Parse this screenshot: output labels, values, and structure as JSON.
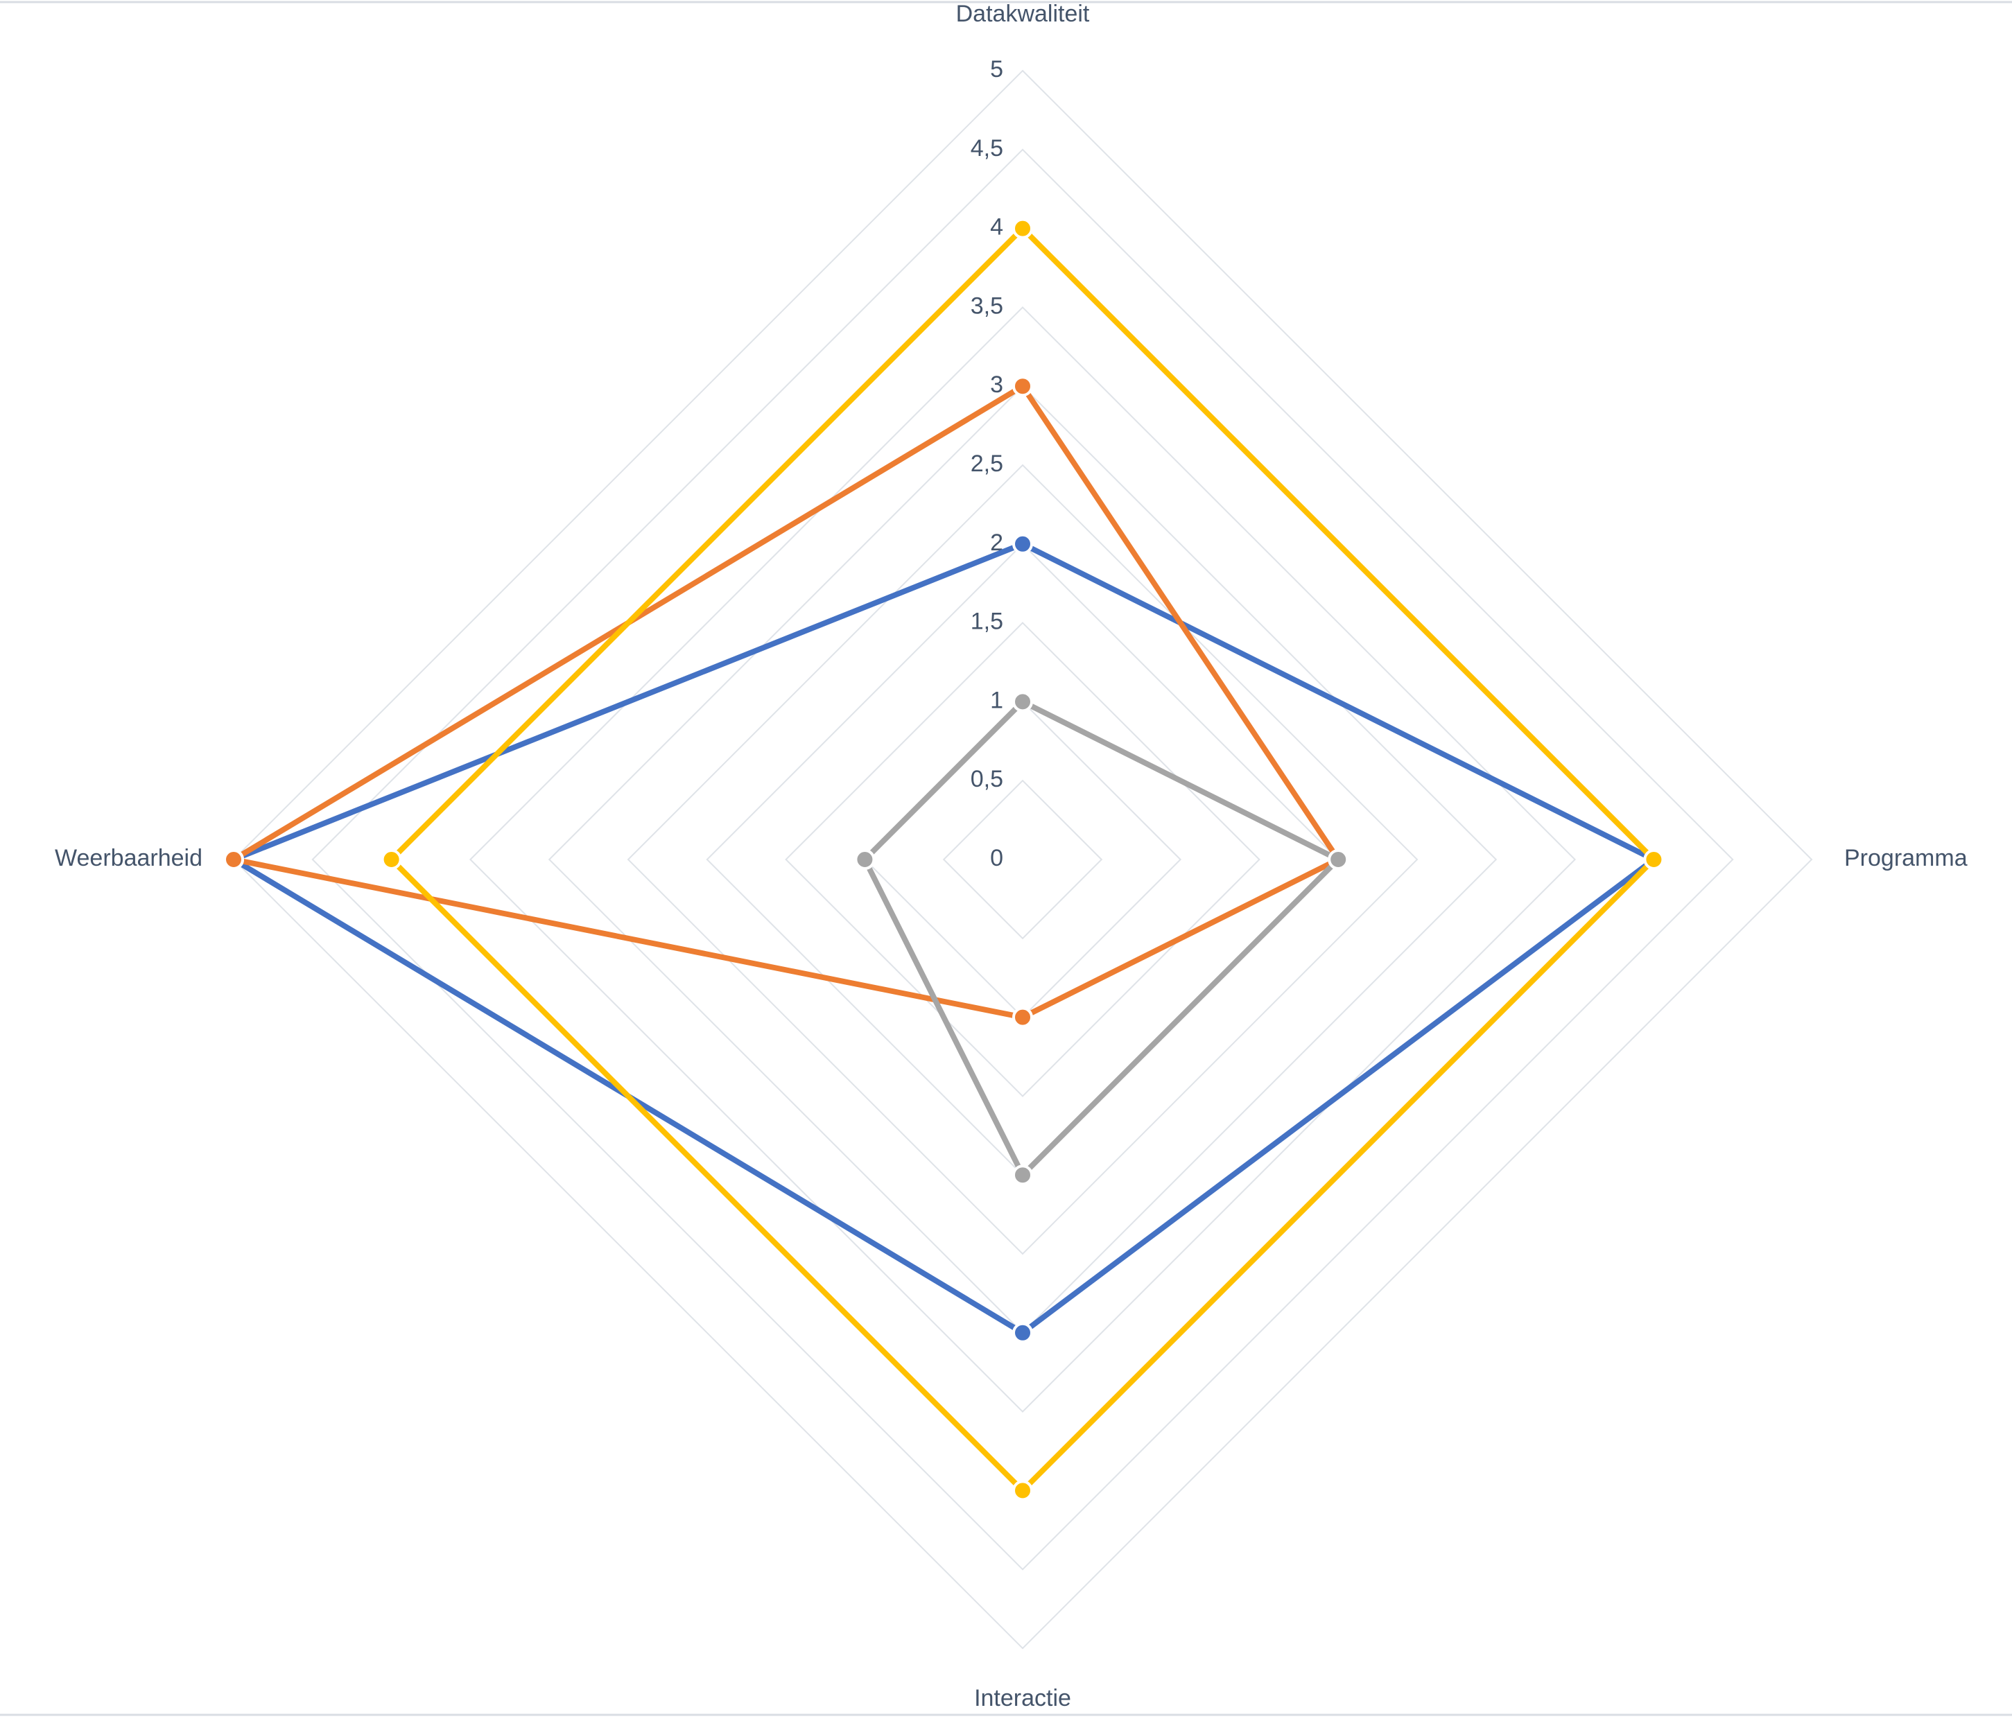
{
  "chart_data": {
    "type": "radar",
    "categories": [
      "Datakwaliteit",
      "Programma",
      "Interactie",
      "Weerbaarheid"
    ],
    "rlim": [
      0,
      5
    ],
    "rticks": [
      0,
      {
        "value": 0.5,
        "label": "0,5"
      },
      1,
      {
        "value": 1.5,
        "label": "1,5"
      },
      2,
      {
        "value": 2.5,
        "label": "2,5"
      },
      3,
      {
        "value": 3.5,
        "label": "3,5"
      },
      4,
      {
        "value": 4.5,
        "label": "4,5"
      },
      5
    ],
    "grid": true,
    "series": [
      {
        "color": "#4472c4",
        "values": [
          2,
          4,
          3,
          5
        ]
      },
      {
        "color": "#ed7d31",
        "values": [
          3,
          2,
          1,
          5
        ]
      },
      {
        "color": "#ffc000",
        "values": [
          4,
          4,
          4,
          4
        ]
      },
      {
        "color": "#a5a5a5",
        "values": [
          1,
          2,
          2,
          1
        ]
      }
    ]
  }
}
